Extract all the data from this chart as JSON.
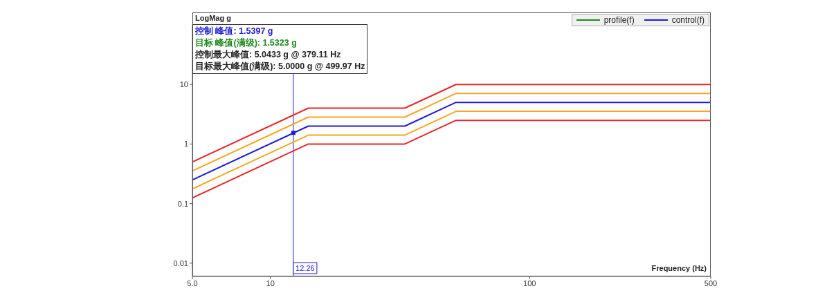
{
  "chart_data": {
    "type": "line",
    "xlabel": "Frequency (Hz)",
    "ylabel": "LogMag g",
    "annotations": [
      "控制 峰值: 1.5397 g",
      "目标 峰值(满级): 1.5323 g",
      "控制最大峰值: 5.0433 g @ 379.11 Hz",
      "目标最大峰值(满级): 5.0000 g @ 499.97 Hz"
    ],
    "x": [
      5,
      14,
      33,
      52,
      500
    ],
    "series": [
      {
        "color": "#e8262a",
        "values": [
          0.5,
          4,
          4,
          10,
          10
        ]
      },
      {
        "color": "#f5a623",
        "values": [
          0.354,
          2.83,
          2.83,
          7.07,
          7.07
        ]
      },
      {
        "color": "#f5a623",
        "values": [
          0.177,
          1.41,
          1.41,
          3.54,
          3.54
        ]
      },
      {
        "color": "#e8262a",
        "values": [
          0.125,
          1,
          1,
          2.5,
          2.5
        ]
      },
      {
        "name": "profile(f)",
        "color": "#1a8a1a",
        "values": [
          null,
          null,
          null,
          null,
          null
        ]
      },
      {
        "name": "control(f)",
        "color": "#1c1cd6",
        "values": [
          0.25,
          2,
          2,
          5,
          5
        ]
      },
      {
        "type": "scatter",
        "color": "#1c1cd6",
        "marker": "square",
        "x": [
          12.26
        ],
        "values": [
          1.5397
        ]
      }
    ],
    "ref_lines": [
      {
        "axis": "x",
        "value": 12.26,
        "label": "12.26",
        "color": "#1c1cd6"
      }
    ],
    "log": "xy",
    "legend": "top right",
    "xlim": [
      5,
      500
    ],
    "xticks": [
      {
        "value": 5,
        "label": "5.0"
      },
      10,
      100,
      500
    ],
    "ylim": [
      0.006,
      100
    ],
    "yticks": [
      0.01,
      0.1,
      1,
      10
    ]
  }
}
